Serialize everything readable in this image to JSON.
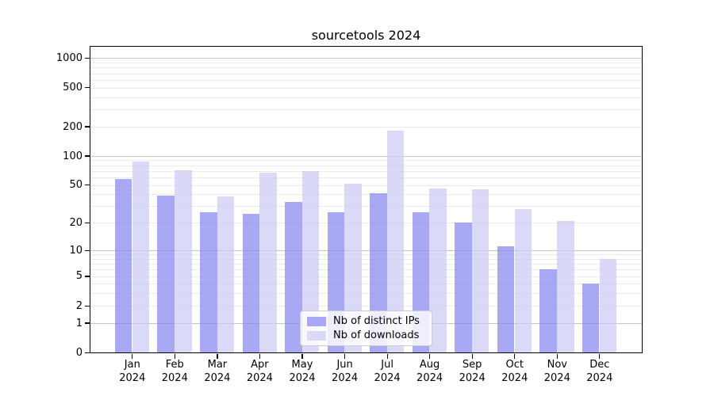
{
  "chart_data": {
    "type": "bar",
    "title": "sourcetools 2024",
    "x_categories": [
      "Jan",
      "Feb",
      "Mar",
      "Apr",
      "May",
      "Jun",
      "Jul",
      "Aug",
      "Sep",
      "Oct",
      "Nov",
      "Dec"
    ],
    "x_year": "2024",
    "series": [
      {
        "key": "ips",
        "name": "Nb of distinct IPs",
        "color": "#a8a8f5",
        "fill": "rgba(131,131,241,0.7)",
        "values": [
          58,
          39,
          26,
          25,
          33,
          26,
          41,
          26,
          20,
          11,
          6,
          4
        ]
      },
      {
        "key": "downloads",
        "name": "Nb of downloads",
        "color": "#dadaf8",
        "fill": "rgba(202,202,245,0.7)",
        "values": [
          87,
          71,
          38,
          67,
          70,
          51,
          180,
          46,
          45,
          28,
          21,
          8
        ]
      }
    ],
    "y_scale": "log1p",
    "y_ticks": [
      0,
      1,
      2,
      5,
      10,
      20,
      50,
      100,
      200,
      500,
      1000
    ],
    "y_major_gridlines": [
      1,
      10,
      100,
      1000
    ],
    "y_minor_gridlines": [
      2,
      3,
      4,
      5,
      6,
      7,
      8,
      9,
      20,
      30,
      40,
      50,
      60,
      70,
      80,
      90,
      200,
      300,
      400,
      500,
      600,
      700,
      800,
      900
    ],
    "ylim": [
      0,
      1300
    ],
    "grid": true,
    "legend_position": "inside-bottom-center",
    "text_color": "#000000",
    "major_grid_color": "#c6c6c6",
    "minor_grid_color": "#ebebeb"
  }
}
